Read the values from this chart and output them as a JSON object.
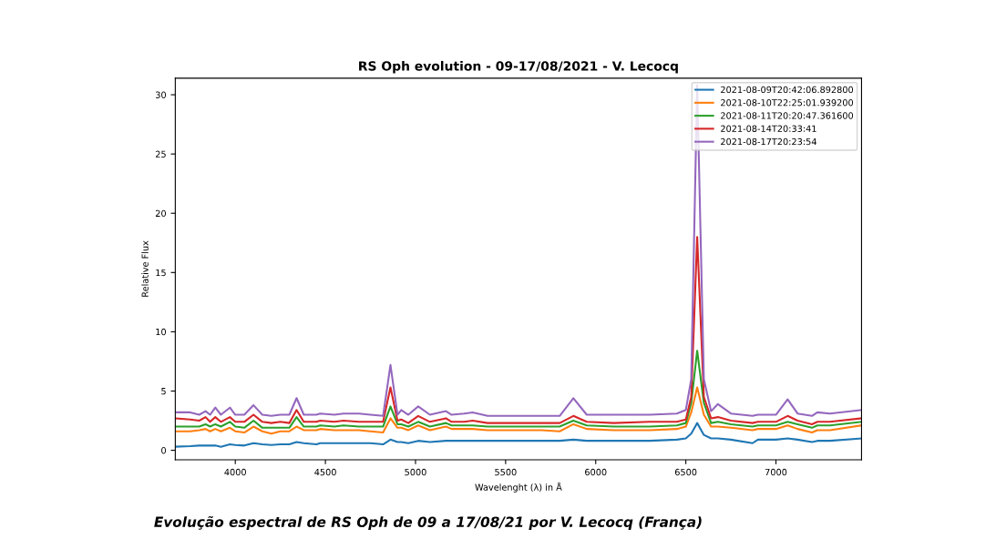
{
  "chart_data": {
    "type": "line",
    "title": "RS Oph evolution - 09-17/08/2021 - V. Lecocq",
    "xlabel": "Wavelenght (λ) in Å",
    "ylabel": "Relative Flux",
    "annotations": [
      "Evolução espectral de RS Oph de 09 a 17/08/21 por V. Lecocq (França)"
    ],
    "x": [
      3670,
      3750,
      3800,
      3835,
      3860,
      3889,
      3920,
      3970,
      4000,
      4050,
      4101,
      4150,
      4200,
      4250,
      4300,
      4340,
      4380,
      4450,
      4471,
      4550,
      4600,
      4686,
      4750,
      4820,
      4861,
      4900,
      4921,
      4960,
      5015,
      5080,
      5169,
      5200,
      5270,
      5317,
      5400,
      5500,
      5600,
      5700,
      5800,
      5876,
      5950,
      6100,
      6300,
      6450,
      6500,
      6530,
      6563,
      6600,
      6640,
      6678,
      6750,
      6870,
      6900,
      7000,
      7065,
      7120,
      7200,
      7230,
      7300,
      7475
    ],
    "series": [
      {
        "name": "2021-08-09T20:42:06.892800",
        "color": "#1f77b4",
        "values": [
          0.3,
          0.35,
          0.4,
          0.4,
          0.4,
          0.4,
          0.3,
          0.5,
          0.45,
          0.4,
          0.6,
          0.5,
          0.45,
          0.5,
          0.5,
          0.7,
          0.6,
          0.5,
          0.6,
          0.6,
          0.6,
          0.6,
          0.6,
          0.5,
          0.9,
          0.7,
          0.7,
          0.6,
          0.8,
          0.7,
          0.8,
          0.8,
          0.8,
          0.8,
          0.8,
          0.8,
          0.8,
          0.8,
          0.8,
          0.9,
          0.8,
          0.8,
          0.8,
          0.9,
          1.0,
          1.4,
          2.3,
          1.3,
          1.0,
          1.0,
          0.9,
          0.6,
          0.9,
          0.9,
          1.0,
          0.9,
          0.7,
          0.8,
          0.8,
          1.0
        ]
      },
      {
        "name": "2021-08-10T22:25:01.939200",
        "color": "#ff7f0e",
        "values": [
          1.6,
          1.6,
          1.7,
          1.8,
          1.6,
          1.8,
          1.6,
          1.9,
          1.6,
          1.5,
          2.0,
          1.6,
          1.4,
          1.6,
          1.6,
          2.0,
          1.7,
          1.7,
          1.8,
          1.7,
          1.7,
          1.7,
          1.6,
          1.5,
          2.7,
          1.9,
          1.9,
          1.7,
          2.1,
          1.7,
          2.0,
          1.8,
          1.8,
          1.8,
          1.7,
          1.7,
          1.7,
          1.7,
          1.6,
          2.2,
          1.8,
          1.7,
          1.7,
          1.8,
          2.0,
          3.2,
          5.3,
          3.0,
          2.0,
          2.0,
          1.9,
          1.7,
          1.8,
          1.8,
          2.1,
          1.8,
          1.5,
          1.7,
          1.7,
          2.1
        ]
      },
      {
        "name": "2021-08-11T20:20:47.361600",
        "color": "#2ca02c",
        "values": [
          2.0,
          2.0,
          2.0,
          2.2,
          2.0,
          2.2,
          2.0,
          2.4,
          2.0,
          1.9,
          2.5,
          1.9,
          1.9,
          1.9,
          1.9,
          2.8,
          2.0,
          2.0,
          2.1,
          2.0,
          2.1,
          2.0,
          2.0,
          2.0,
          3.7,
          2.2,
          2.2,
          2.0,
          2.4,
          2.0,
          2.3,
          2.1,
          2.1,
          2.1,
          2.0,
          2.0,
          2.0,
          2.0,
          2.0,
          2.5,
          2.1,
          2.0,
          2.0,
          2.1,
          2.3,
          4.0,
          8.4,
          4.0,
          2.3,
          2.4,
          2.2,
          2.0,
          2.1,
          2.1,
          2.4,
          2.2,
          1.9,
          2.1,
          2.1,
          2.4
        ]
      },
      {
        "name": "2021-08-14T20:33:41",
        "color": "#d62728",
        "values": [
          2.7,
          2.6,
          2.5,
          2.8,
          2.4,
          2.8,
          2.4,
          2.8,
          2.4,
          2.4,
          3.0,
          2.4,
          2.3,
          2.4,
          2.3,
          3.4,
          2.4,
          2.4,
          2.5,
          2.4,
          2.5,
          2.4,
          2.4,
          2.4,
          5.3,
          2.5,
          2.6,
          2.3,
          2.9,
          2.4,
          2.7,
          2.4,
          2.4,
          2.5,
          2.3,
          2.3,
          2.3,
          2.3,
          2.3,
          2.9,
          2.4,
          2.3,
          2.4,
          2.4,
          2.6,
          4.5,
          18.0,
          4.5,
          2.7,
          2.8,
          2.5,
          2.3,
          2.4,
          2.4,
          2.9,
          2.5,
          2.2,
          2.4,
          2.4,
          2.7
        ]
      },
      {
        "name": "2021-08-17T20:23:54",
        "color": "#9467bd",
        "values": [
          3.2,
          3.2,
          3.0,
          3.3,
          3.0,
          3.6,
          3.0,
          3.6,
          3.0,
          3.0,
          3.8,
          3.0,
          2.9,
          3.0,
          3.0,
          4.4,
          3.0,
          3.0,
          3.1,
          3.0,
          3.1,
          3.1,
          3.0,
          2.9,
          7.2,
          3.0,
          3.4,
          3.0,
          3.7,
          3.0,
          3.3,
          3.0,
          3.1,
          3.2,
          2.9,
          2.9,
          2.9,
          2.9,
          2.9,
          4.4,
          3.0,
          3.0,
          3.0,
          3.1,
          3.4,
          6.0,
          30.8,
          6.0,
          3.3,
          3.9,
          3.1,
          2.9,
          3.0,
          3.0,
          4.3,
          3.1,
          2.9,
          3.2,
          3.1,
          3.4
        ]
      }
    ],
    "xlim": [
      3667,
      7475
    ],
    "xticks": [
      4000,
      4500,
      5000,
      5500,
      6000,
      6500,
      7000
    ],
    "ylim": [
      -0.8,
      31.4
    ],
    "yticks": [
      0,
      5,
      10,
      15,
      20,
      25,
      30
    ],
    "grid": false,
    "legend": "top right",
    "marker": "none",
    "line_style": "solid"
  }
}
